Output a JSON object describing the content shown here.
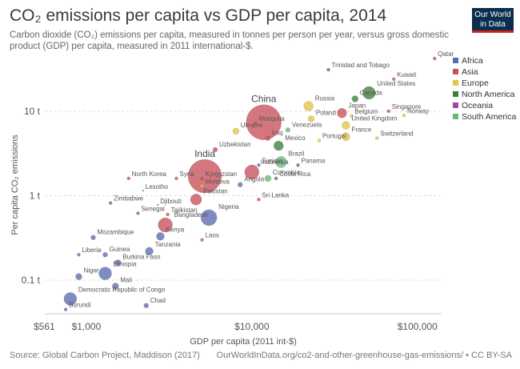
{
  "header": {
    "title": "CO₂ emissions per capita vs GDP per capita, 2014",
    "subtitle": "Carbon dioxide (CO₂) emissions per capita, measured in tonnes per person per year, versus gross domestic product (GDP) per capita, measured in 2011 international-$.",
    "logo_line1": "Our World",
    "logo_line2": "in Data"
  },
  "footer": {
    "source": "Source: Global Carbon Project, Maddison (2017)",
    "url": "OurWorldInData.org/co2-and-other-greenhouse-gas-emissions/ • CC BY-SA"
  },
  "colors": {
    "Africa": "#5b6bb0",
    "Asia": "#c8505a",
    "Europe": "#e8c342",
    "North America": "#3f7d3e",
    "Oceania": "#9c4aa0",
    "South America": "#67b97a"
  },
  "chart_data": {
    "type": "scatter",
    "title": "CO₂ emissions per capita vs GDP per capita, 2014",
    "xlabel": "GDP per capita (2011 int-$)",
    "ylabel": "Per capita CO₂ emissions",
    "xscale": "log",
    "yscale": "log",
    "xlim": [
      561,
      140000
    ],
    "ylim": [
      0.04,
      45
    ],
    "xticks": [
      {
        "value": 561,
        "label": "$561"
      },
      {
        "value": 1000,
        "label": "$1,000"
      },
      {
        "value": 10000,
        "label": "$10,000"
      },
      {
        "value": 100000,
        "label": "$100,000"
      }
    ],
    "yticks": [
      {
        "value": 0.1,
        "label": "0.1 t"
      },
      {
        "value": 1,
        "label": "1 t"
      },
      {
        "value": 10,
        "label": "10 t"
      }
    ],
    "grid": "horizontal-dashed",
    "legend_position": "top-right",
    "legend": [
      "Africa",
      "Asia",
      "Europe",
      "North America",
      "Oceania",
      "South America"
    ],
    "points": [
      {
        "label": "Qatar",
        "x": 127000,
        "y": 42,
        "region": "Asia",
        "size": 2
      },
      {
        "label": "Trinidad and Tobago",
        "x": 29000,
        "y": 31,
        "region": "North America",
        "size": 2
      },
      {
        "label": "Kuwait",
        "x": 72000,
        "y": 24,
        "region": "Asia",
        "size": 2
      },
      {
        "label": "United States",
        "x": 51000,
        "y": 16.5,
        "region": "North America",
        "size": 8
      },
      {
        "label": "Canada",
        "x": 42000,
        "y": 14,
        "region": "North America",
        "size": 4
      },
      {
        "label": "Russia",
        "x": 22000,
        "y": 11.5,
        "region": "Europe",
        "size": 6
      },
      {
        "label": "China",
        "x": 11800,
        "y": 7.4,
        "region": "Asia",
        "size": 22
      },
      {
        "label": "Singapore",
        "x": 67000,
        "y": 10,
        "region": "Asia",
        "size": 2
      },
      {
        "label": "Japan",
        "x": 35000,
        "y": 9.5,
        "region": "Asia",
        "size": 6
      },
      {
        "label": "Belgium",
        "x": 40000,
        "y": 8.8,
        "region": "Europe",
        "size": 2
      },
      {
        "label": "Norway",
        "x": 83000,
        "y": 8.9,
        "region": "Europe",
        "size": 2
      },
      {
        "label": "Mongolia",
        "x": 10500,
        "y": 7.2,
        "region": "Asia",
        "size": 2
      },
      {
        "label": "Poland",
        "x": 22800,
        "y": 8.1,
        "region": "Europe",
        "size": 4
      },
      {
        "label": "Ukraine",
        "x": 8000,
        "y": 5.8,
        "region": "Europe",
        "size": 4
      },
      {
        "label": "United Kingdom",
        "x": 37000,
        "y": 6.8,
        "region": "Europe",
        "size": 5
      },
      {
        "label": "Venezuela",
        "x": 16500,
        "y": 6.0,
        "region": "South America",
        "size": 3
      },
      {
        "label": "France",
        "x": 37000,
        "y": 5.0,
        "region": "Europe",
        "size": 5
      },
      {
        "label": "Switzerland",
        "x": 57000,
        "y": 4.8,
        "region": "Europe",
        "size": 2
      },
      {
        "label": "Mexico",
        "x": 14500,
        "y": 3.9,
        "region": "North America",
        "size": 6
      },
      {
        "label": "Iraq",
        "x": 12500,
        "y": 4.8,
        "region": "Asia",
        "size": 3
      },
      {
        "label": "Portugal",
        "x": 25500,
        "y": 4.5,
        "region": "Europe",
        "size": 2
      },
      {
        "label": "Uzbekistan",
        "x": 6000,
        "y": 3.5,
        "region": "Asia",
        "size": 3
      },
      {
        "label": "Brazil",
        "x": 15000,
        "y": 2.5,
        "region": "South America",
        "size": 7
      },
      {
        "label": "Panama",
        "x": 19000,
        "y": 2.3,
        "region": "North America",
        "size": 2
      },
      {
        "label": "Tunisia",
        "x": 11000,
        "y": 2.3,
        "region": "Africa",
        "size": 2
      },
      {
        "label": "Indonesia",
        "x": 10000,
        "y": 1.9,
        "region": "Asia",
        "size": 9
      },
      {
        "label": "Costa Rica",
        "x": 14000,
        "y": 1.6,
        "region": "North America",
        "size": 2
      },
      {
        "label": "Colombia",
        "x": 12500,
        "y": 1.6,
        "region": "South America",
        "size": 4
      },
      {
        "label": "Angola",
        "x": 8500,
        "y": 1.35,
        "region": "Africa",
        "size": 3
      },
      {
        "label": "India",
        "x": 5200,
        "y": 1.7,
        "region": "Asia",
        "size": 21
      },
      {
        "label": "Kyrgyzstan",
        "x": 5000,
        "y": 1.6,
        "region": "Asia",
        "size": 2
      },
      {
        "label": "North Korea",
        "x": 1800,
        "y": 1.6,
        "region": "Asia",
        "size": 2
      },
      {
        "label": "Syria",
        "x": 3500,
        "y": 1.6,
        "region": "Asia",
        "size": 2
      },
      {
        "label": "Lesotho",
        "x": 2200,
        "y": 1.15,
        "region": "Africa",
        "size": 1
      },
      {
        "label": "Moldova",
        "x": 5000,
        "y": 1.3,
        "region": "Europe",
        "size": 2
      },
      {
        "label": "Pakistan",
        "x": 4600,
        "y": 0.9,
        "region": "Asia",
        "size": 7
      },
      {
        "label": "Sri Lanka",
        "x": 11000,
        "y": 0.9,
        "region": "Asia",
        "size": 2
      },
      {
        "label": "Zimbabwe",
        "x": 1400,
        "y": 0.82,
        "region": "Africa",
        "size": 2
      },
      {
        "label": "Djibouti",
        "x": 2700,
        "y": 0.78,
        "region": "Africa",
        "size": 1
      },
      {
        "label": "Senegal",
        "x": 2050,
        "y": 0.62,
        "region": "Africa",
        "size": 2
      },
      {
        "label": "Tajikistan",
        "x": 3100,
        "y": 0.6,
        "region": "Asia",
        "size": 2
      },
      {
        "label": "Bangladesh",
        "x": 3000,
        "y": 0.45,
        "region": "Asia",
        "size": 9
      },
      {
        "label": "Nigeria",
        "x": 5500,
        "y": 0.55,
        "region": "Africa",
        "size": 10
      },
      {
        "label": "Mozambique",
        "x": 1100,
        "y": 0.32,
        "region": "Africa",
        "size": 3
      },
      {
        "label": "Kenya",
        "x": 2800,
        "y": 0.33,
        "region": "Africa",
        "size": 5
      },
      {
        "label": "Laos",
        "x": 5000,
        "y": 0.3,
        "region": "Asia",
        "size": 2
      },
      {
        "label": "Liberia",
        "x": 900,
        "y": 0.2,
        "region": "Africa",
        "size": 2
      },
      {
        "label": "Guinea",
        "x": 1300,
        "y": 0.2,
        "region": "Africa",
        "size": 3
      },
      {
        "label": "Tanzania",
        "x": 2400,
        "y": 0.22,
        "region": "Africa",
        "size": 5
      },
      {
        "label": "Burkina Faso",
        "x": 1550,
        "y": 0.16,
        "region": "Africa",
        "size": 4
      },
      {
        "label": "Ethiopia",
        "x": 1300,
        "y": 0.12,
        "region": "Africa",
        "size": 8
      },
      {
        "label": "Niger",
        "x": 900,
        "y": 0.11,
        "region": "Africa",
        "size": 4
      },
      {
        "label": "Mali",
        "x": 1500,
        "y": 0.085,
        "region": "Africa",
        "size": 4
      },
      {
        "label": "Democratic Republic of Congo",
        "x": 800,
        "y": 0.06,
        "region": "Africa",
        "size": 8
      },
      {
        "label": "Chad",
        "x": 2300,
        "y": 0.05,
        "region": "Africa",
        "size": 3
      },
      {
        "label": "Burundi",
        "x": 750,
        "y": 0.045,
        "region": "Africa",
        "size": 2
      }
    ]
  }
}
